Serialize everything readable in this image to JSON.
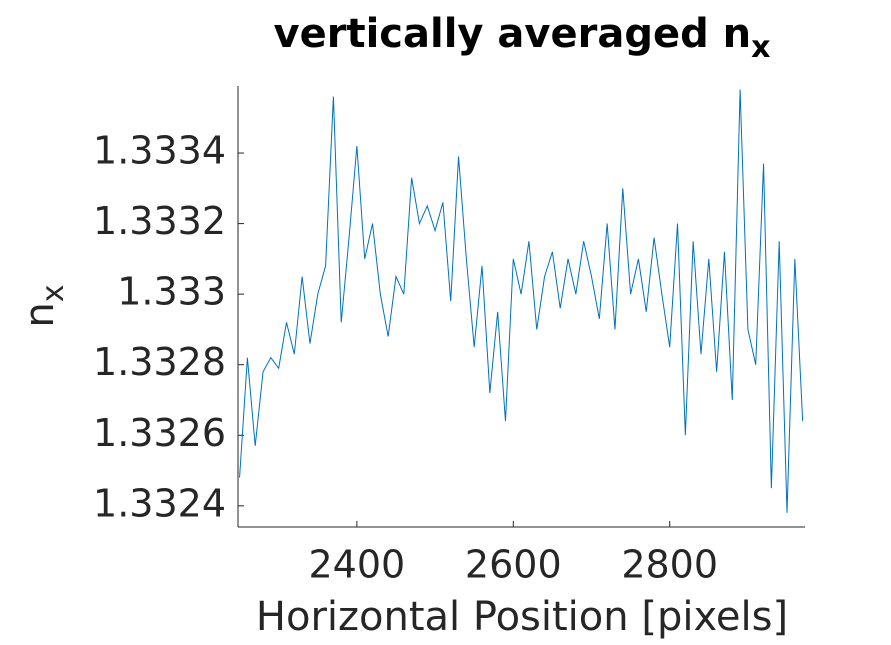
{
  "chart_data": {
    "type": "line",
    "title": "vertically averaged n_x",
    "xlabel": "Horizontal Position [pixels]",
    "ylabel": "n_x",
    "x": [
      2250,
      2260,
      2270,
      2280,
      2290,
      2300,
      2310,
      2320,
      2330,
      2340,
      2350,
      2360,
      2370,
      2380,
      2390,
      2400,
      2410,
      2420,
      2430,
      2440,
      2450,
      2460,
      2470,
      2480,
      2490,
      2500,
      2510,
      2520,
      2530,
      2540,
      2550,
      2560,
      2570,
      2580,
      2590,
      2600,
      2610,
      2620,
      2630,
      2640,
      2650,
      2660,
      2670,
      2680,
      2690,
      2700,
      2710,
      2720,
      2730,
      2740,
      2750,
      2760,
      2770,
      2780,
      2790,
      2800,
      2810,
      2820,
      2830,
      2840,
      2850,
      2860,
      2870,
      2880,
      2890,
      2900,
      2910,
      2920,
      2930,
      2940,
      2950,
      2960,
      2970
    ],
    "series": [
      {
        "color": "#0072bd",
        "values": [
          1.33248,
          1.33282,
          1.33257,
          1.33278,
          1.33282,
          1.33279,
          1.33292,
          1.33283,
          1.33305,
          1.33286,
          1.333,
          1.33308,
          1.33356,
          1.33292,
          1.33316,
          1.33342,
          1.3331,
          1.3332,
          1.333,
          1.33288,
          1.33305,
          1.333,
          1.33333,
          1.3332,
          1.33325,
          1.33318,
          1.33326,
          1.33298,
          1.33339,
          1.3331,
          1.33285,
          1.33308,
          1.33272,
          1.33295,
          1.33264,
          1.3331,
          1.333,
          1.33315,
          1.3329,
          1.33305,
          1.33312,
          1.33296,
          1.3331,
          1.333,
          1.33315,
          1.33305,
          1.33293,
          1.3332,
          1.3329,
          1.3333,
          1.333,
          1.3331,
          1.33295,
          1.33316,
          1.333,
          1.33285,
          1.3332,
          1.3326,
          1.33315,
          1.33283,
          1.3331,
          1.33278,
          1.33312,
          1.3327,
          1.33358,
          1.3329,
          1.3328,
          1.33337,
          1.33245,
          1.33315,
          1.33238,
          1.3331,
          1.33264
        ]
      }
    ],
    "xlim": [
      2248,
      2973
    ],
    "ylim": [
      1.33234,
      1.33359
    ],
    "xticks": [
      2400,
      2600,
      2800
    ],
    "yticks": [
      1.3324,
      1.3326,
      1.3328,
      1.333,
      1.3332,
      1.3334
    ]
  }
}
